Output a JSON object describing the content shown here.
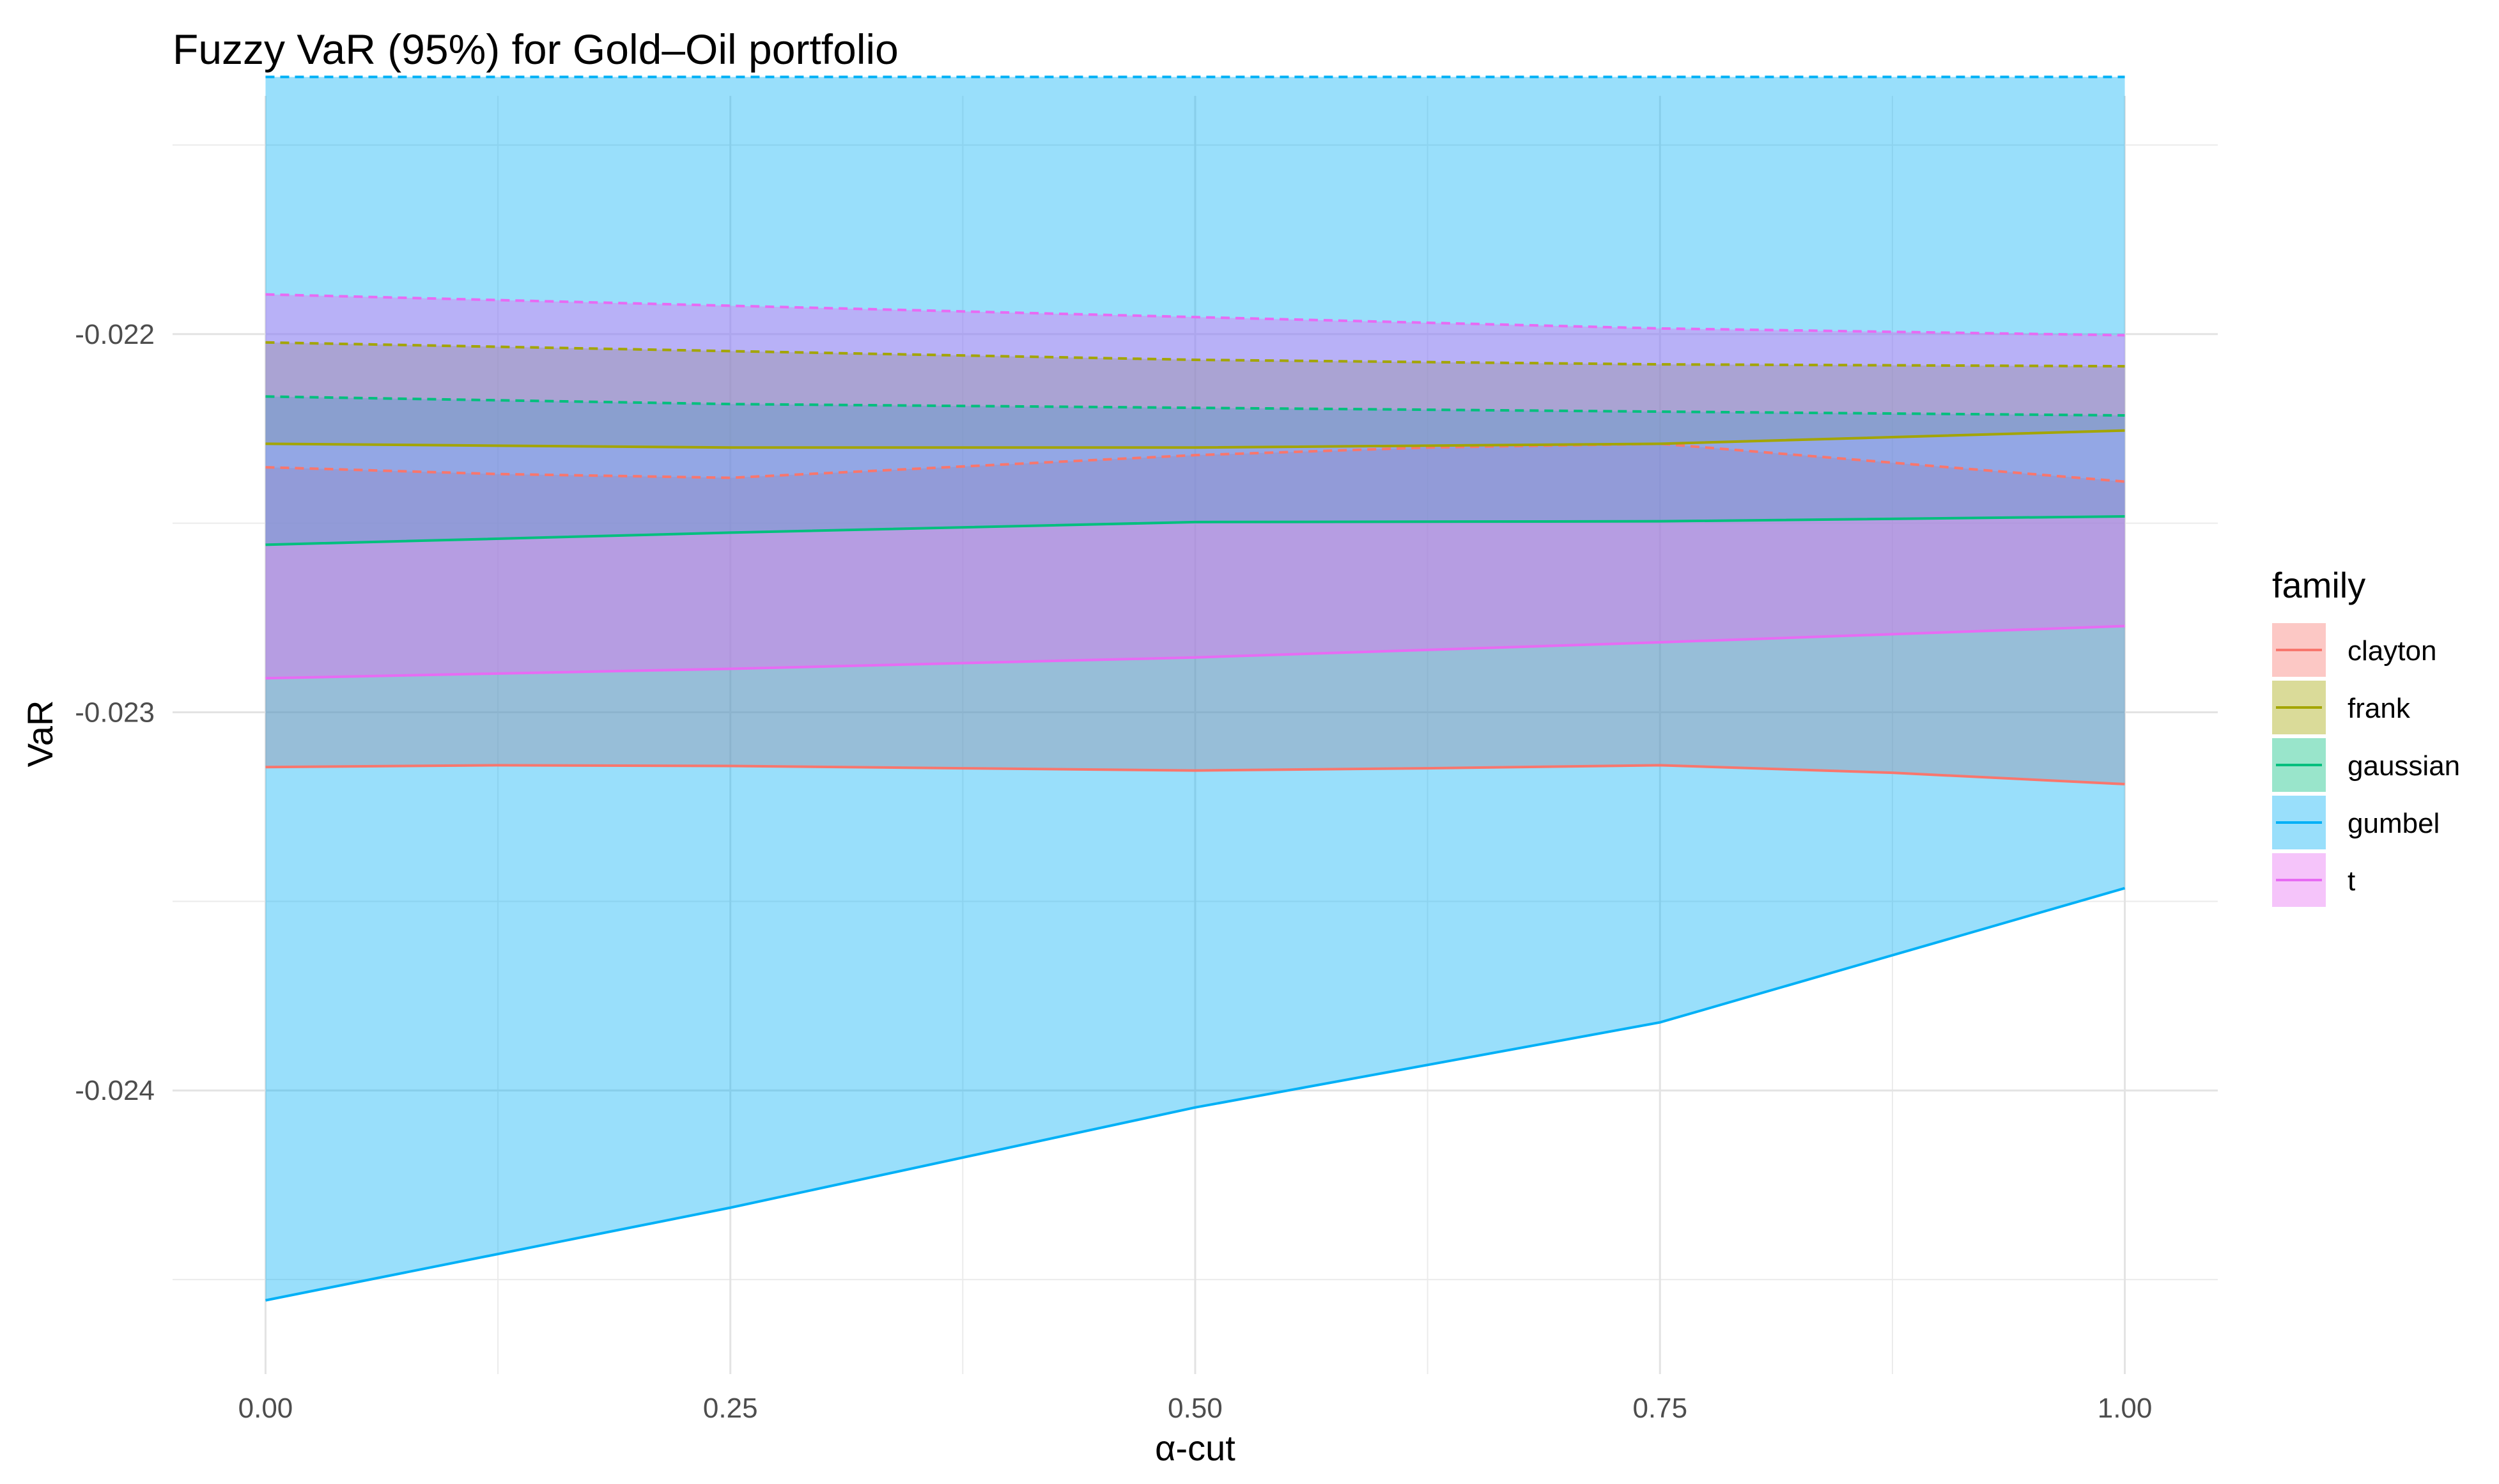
{
  "chart_data": {
    "type": "area",
    "title": "Fuzzy VaR (95%) for Gold–Oil portfolio",
    "xlabel": "α-cut",
    "ylabel": "VaR",
    "x_ticks": [
      "0.00",
      "0.25",
      "0.50",
      "0.75",
      "1.00"
    ],
    "y_ticks": [
      "-0.022",
      "-0.023",
      "-0.024"
    ],
    "xlim": [
      -0.05,
      1.05
    ],
    "ylim": [
      -0.02475,
      -0.02137
    ],
    "legend_title": "family",
    "legend_position": "right",
    "grid": true,
    "series": [
      {
        "name": "clayton",
        "color": "#F8766D",
        "x": [
          0,
          0.125,
          0.25,
          0.375,
          0.5,
          0.625,
          0.75,
          0.875,
          1
        ],
        "lower": [
          -0.023145,
          -0.02314,
          -0.023142,
          -0.023148,
          -0.023154,
          -0.023148,
          -0.02314,
          -0.02316,
          -0.02319
        ],
        "upper": [
          -0.022352,
          -0.02237,
          -0.02238,
          -0.02235,
          -0.02232,
          -0.0223,
          -0.02229,
          -0.02234,
          -0.02239
        ]
      },
      {
        "name": "frank",
        "color": "#A3A500",
        "x": [
          0,
          0.25,
          0.5,
          0.75,
          1
        ],
        "lower": [
          -0.02229,
          -0.0223,
          -0.0223,
          -0.02229,
          -0.022255
        ],
        "upper": [
          -0.022022,
          -0.022045,
          -0.022068,
          -0.02208,
          -0.022085
        ]
      },
      {
        "name": "gaussian",
        "color": "#00BF7D",
        "x": [
          0,
          0.25,
          0.5,
          0.75,
          1
        ],
        "lower": [
          -0.022557,
          -0.022525,
          -0.022497,
          -0.022495,
          -0.022482
        ],
        "upper": [
          -0.022165,
          -0.022185,
          -0.022195,
          -0.022205,
          -0.022215
        ]
      },
      {
        "name": "gumbel",
        "color": "#00B0F6",
        "x": [
          0,
          0.25,
          0.5,
          0.75,
          1
        ],
        "lower": [
          -0.024555,
          -0.02431,
          -0.024045,
          -0.02382,
          -0.023465
        ],
        "upper": [
          -0.02132,
          -0.02132,
          -0.02132,
          -0.02132,
          -0.02132
        ]
      },
      {
        "name": "t",
        "color": "#E76BF3",
        "x": [
          0,
          0.25,
          0.5,
          0.75,
          1
        ],
        "lower": [
          -0.02291,
          -0.022885,
          -0.022855,
          -0.022815,
          -0.022772
        ],
        "upper": [
          -0.021895,
          -0.021925,
          -0.021955,
          -0.021985,
          -0.022003
        ]
      }
    ]
  }
}
